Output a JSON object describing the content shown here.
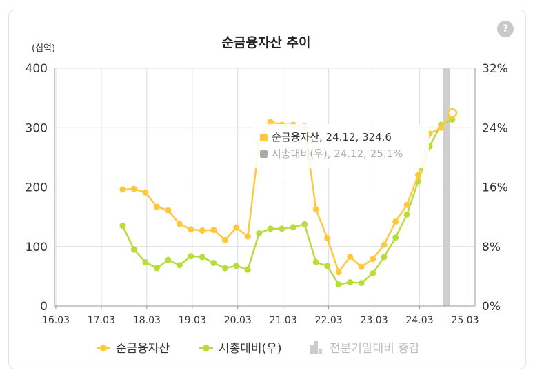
{
  "help": {
    "label": "?"
  },
  "chart_data": {
    "type": "line",
    "title": "순금융자산 추이",
    "left_unit": "(십억)",
    "x_ticks": [
      "16.03",
      "17.03",
      "18.03",
      "19.03",
      "20.03",
      "21.03",
      "22.03",
      "23.03",
      "24.03",
      "25.03"
    ],
    "y_left": {
      "ticks": [
        "0",
        "100",
        "200",
        "300",
        "400"
      ],
      "min": 0,
      "max": 400
    },
    "y_right": {
      "ticks": [
        "0%",
        "8%",
        "16%",
        "24%",
        "32%"
      ],
      "min": 0,
      "max": 32
    },
    "x_range": [
      16.25,
      25.5
    ],
    "highlight_band": [
      24.75,
      25.0
    ],
    "series": [
      {
        "name": "순금융자산",
        "axis": "left",
        "color": "#ffc83d",
        "x": [
          17.75,
          18.0,
          18.25,
          18.5,
          18.75,
          19.0,
          19.25,
          19.5,
          19.75,
          20.0,
          20.25,
          20.5,
          20.75,
          21.0,
          21.25,
          21.5,
          21.75,
          22.0,
          22.25,
          22.5,
          22.75,
          23.0,
          23.25,
          23.5,
          23.75,
          24.0,
          24.25,
          24.5,
          24.75,
          25.0
        ],
        "y": [
          196,
          197,
          191,
          167,
          161,
          138,
          129,
          127,
          128,
          111,
          132,
          117,
          275,
          310,
          305,
          305,
          302,
          163,
          114,
          57,
          83,
          66,
          79,
          103,
          142,
          170,
          220,
          290,
          300,
          324.6
        ]
      },
      {
        "name": "시총대비(우)",
        "axis": "right",
        "color": "#b8dc3a",
        "x": [
          17.75,
          18.0,
          18.25,
          18.5,
          18.75,
          19.0,
          19.25,
          19.5,
          19.75,
          20.0,
          20.25,
          20.5,
          20.75,
          21.0,
          21.25,
          21.5,
          21.75,
          22.0,
          22.25,
          22.5,
          22.75,
          23.0,
          23.25,
          23.5,
          23.75,
          24.0,
          24.25,
          24.5,
          24.75,
          25.0
        ],
        "y": [
          10.8,
          7.6,
          5.9,
          5.1,
          6.2,
          5.5,
          6.7,
          6.6,
          5.8,
          5.1,
          5.4,
          4.9,
          9.8,
          10.4,
          10.4,
          10.6,
          11.0,
          5.9,
          5.4,
          2.9,
          3.2,
          3.1,
          4.4,
          6.6,
          9.2,
          12.3,
          16.8,
          21.5,
          24.4,
          25.1
        ]
      }
    ],
    "legend": {
      "position": "bottom",
      "items": [
        {
          "label": "순금융자산",
          "color": "#ffc83d",
          "marker": "line-dot"
        },
        {
          "label": "시총대비(우)",
          "color": "#b8dc3a",
          "marker": "line-dot"
        },
        {
          "label": "전분기말대비 증감",
          "color": "#cccccc",
          "marker": "bars",
          "muted": true
        }
      ]
    },
    "tooltip": {
      "rows": [
        {
          "text": "순금융자산, 24.12, 324.6",
          "color": "#ffc83d"
        },
        {
          "text": "시총대비(우), 24.12, 25.1%",
          "color": "#aaaaaa",
          "muted": true
        }
      ]
    }
  }
}
